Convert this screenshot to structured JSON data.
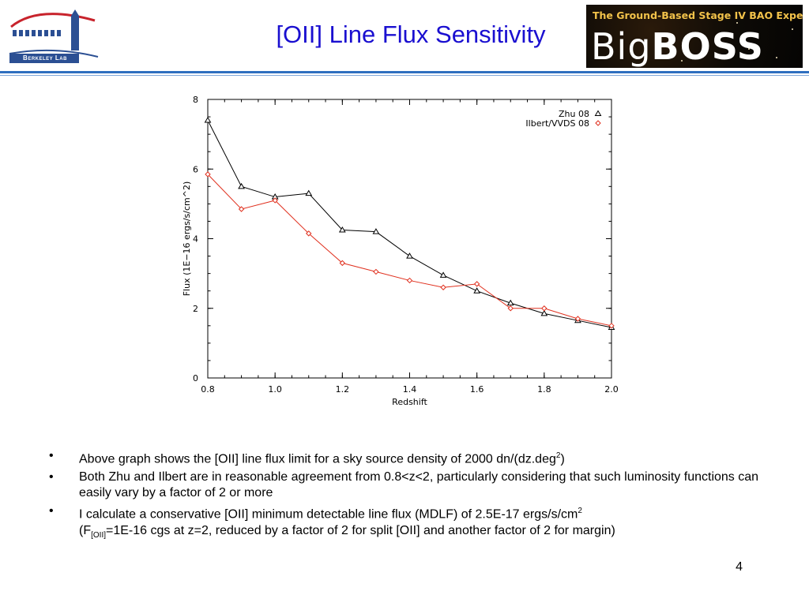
{
  "header": {
    "logo_text": "Berkeley Lab",
    "title": "[OII] Line Flux Sensitivity",
    "banner_subtitle": "The Ground-Based Stage IV BAO Experiment",
    "banner_name_light": "Big",
    "banner_name_bold": "BOSS",
    "colors": {
      "title": "#1a0fd0",
      "rule": "#2f6fbf",
      "banner_subtitle": "#f2c24a"
    }
  },
  "chart_data": {
    "type": "line",
    "xlabel": "Redshift",
    "ylabel": "Flux (1E−16 ergs/s/cm^2)",
    "xlim": [
      0.8,
      2.0
    ],
    "ylim": [
      0,
      8
    ],
    "xticks": [
      "0.8",
      "1.0",
      "1.2",
      "1.4",
      "1.6",
      "1.8",
      "2.0"
    ],
    "yticks": [
      "0",
      "2",
      "4",
      "6",
      "8"
    ],
    "grid": false,
    "legend_position": "top-right",
    "series": [
      {
        "name": "Zhu  08",
        "color": "#000000",
        "marker": "triangle",
        "x": [
          0.8,
          0.9,
          1.0,
          1.1,
          1.2,
          1.3,
          1.4,
          1.5,
          1.6,
          1.7,
          1.8,
          1.9,
          2.0
        ],
        "y": [
          7.4,
          5.5,
          5.2,
          5.3,
          4.25,
          4.2,
          3.5,
          2.95,
          2.5,
          2.15,
          1.85,
          1.65,
          1.45
        ]
      },
      {
        "name": "Ilbert/VVDS  08",
        "color": "#e0301e",
        "marker": "diamond",
        "x": [
          0.8,
          0.9,
          1.0,
          1.1,
          1.2,
          1.3,
          1.4,
          1.5,
          1.6,
          1.7,
          1.8,
          1.9,
          2.0
        ],
        "y": [
          5.85,
          4.85,
          5.1,
          4.15,
          3.3,
          3.05,
          2.8,
          2.6,
          2.7,
          2.0,
          2.0,
          1.7,
          1.5
        ]
      }
    ]
  },
  "bullets": [
    {
      "text": "Above graph shows the [OII] line flux limit for a sky source density of 2000 dn/(dz.deg",
      "sup": "2",
      "tail": ")"
    },
    {
      "text": "Both Zhu and Ilbert are in reasonable agreement from 0.8<z<2, particularly considering that such luminosity functions can easily vary by a factor of 2 or more"
    },
    {
      "line1": "I calculate a conservative [OII] minimum detectable line flux (MDLF) of 2.5E-17 ergs/s/cm",
      "line1_sup": "2",
      "line2_prefix": "(F",
      "line2_sub": "[OII]",
      "line2_rest": "=1E-16 cgs at z=2, reduced by a factor of 2 for split [OII] and another factor of 2 for margin)"
    }
  ],
  "bullet_symbol": "•",
  "page_number": "4"
}
